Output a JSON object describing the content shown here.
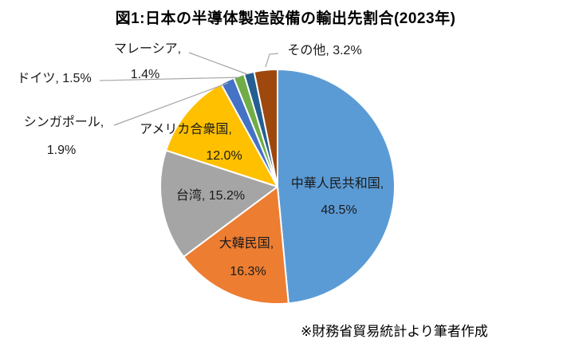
{
  "title": "図1:日本の半導体製造設備の輸出先割合(2023年)",
  "source_note": "※財務省貿易統計より筆者作成",
  "chart_data": {
    "type": "pie",
    "title": "図1:日本の半導体製造設備の輸出先割合(2023年)",
    "start_angle_deg": 0,
    "direction": "clockwise",
    "values_unit": "%",
    "background": "#FFFFFF",
    "leader_line_color": "#A6A6A6",
    "slice_border_color": "#FFFFFF",
    "slices": [
      {
        "name": "中華人民共和国",
        "value": 48.5,
        "color": "#5B9BD5",
        "label_position": "inside",
        "display": {
          "line1": "中華人民共和国,",
          "line2": "48.5%"
        }
      },
      {
        "name": "大韓民国",
        "value": 16.3,
        "color": "#ED7D31",
        "label_position": "inside",
        "display": {
          "line1": "大韓民国,",
          "line2": "16.3%"
        }
      },
      {
        "name": "台湾",
        "value": 15.2,
        "color": "#A5A5A5",
        "label_position": "inside",
        "display": {
          "line1": "台湾, 15.2%"
        }
      },
      {
        "name": "アメリカ合衆国",
        "value": 12.0,
        "color": "#FFC000",
        "label_position": "inside",
        "display": {
          "line1": "アメリカ合衆国,",
          "line2": "12.0%"
        }
      },
      {
        "name": "シンガポール",
        "value": 1.9,
        "color": "#4472C4",
        "label_position": "outside",
        "display": {
          "line1": "シンガポール,",
          "line2": "1.9%"
        }
      },
      {
        "name": "ドイツ",
        "value": 1.5,
        "color": "#70AD47",
        "label_position": "outside",
        "display": {
          "line1": "ドイツ, 1.5%"
        }
      },
      {
        "name": "マレーシア",
        "value": 1.4,
        "color": "#255E91",
        "label_position": "outside",
        "display": {
          "line1": "マレーシア,",
          "line2": "1.4%"
        }
      },
      {
        "name": "その他",
        "value": 3.2,
        "color": "#9E480E",
        "label_position": "outside",
        "display": {
          "line1": "その他, 3.2%"
        }
      }
    ]
  }
}
